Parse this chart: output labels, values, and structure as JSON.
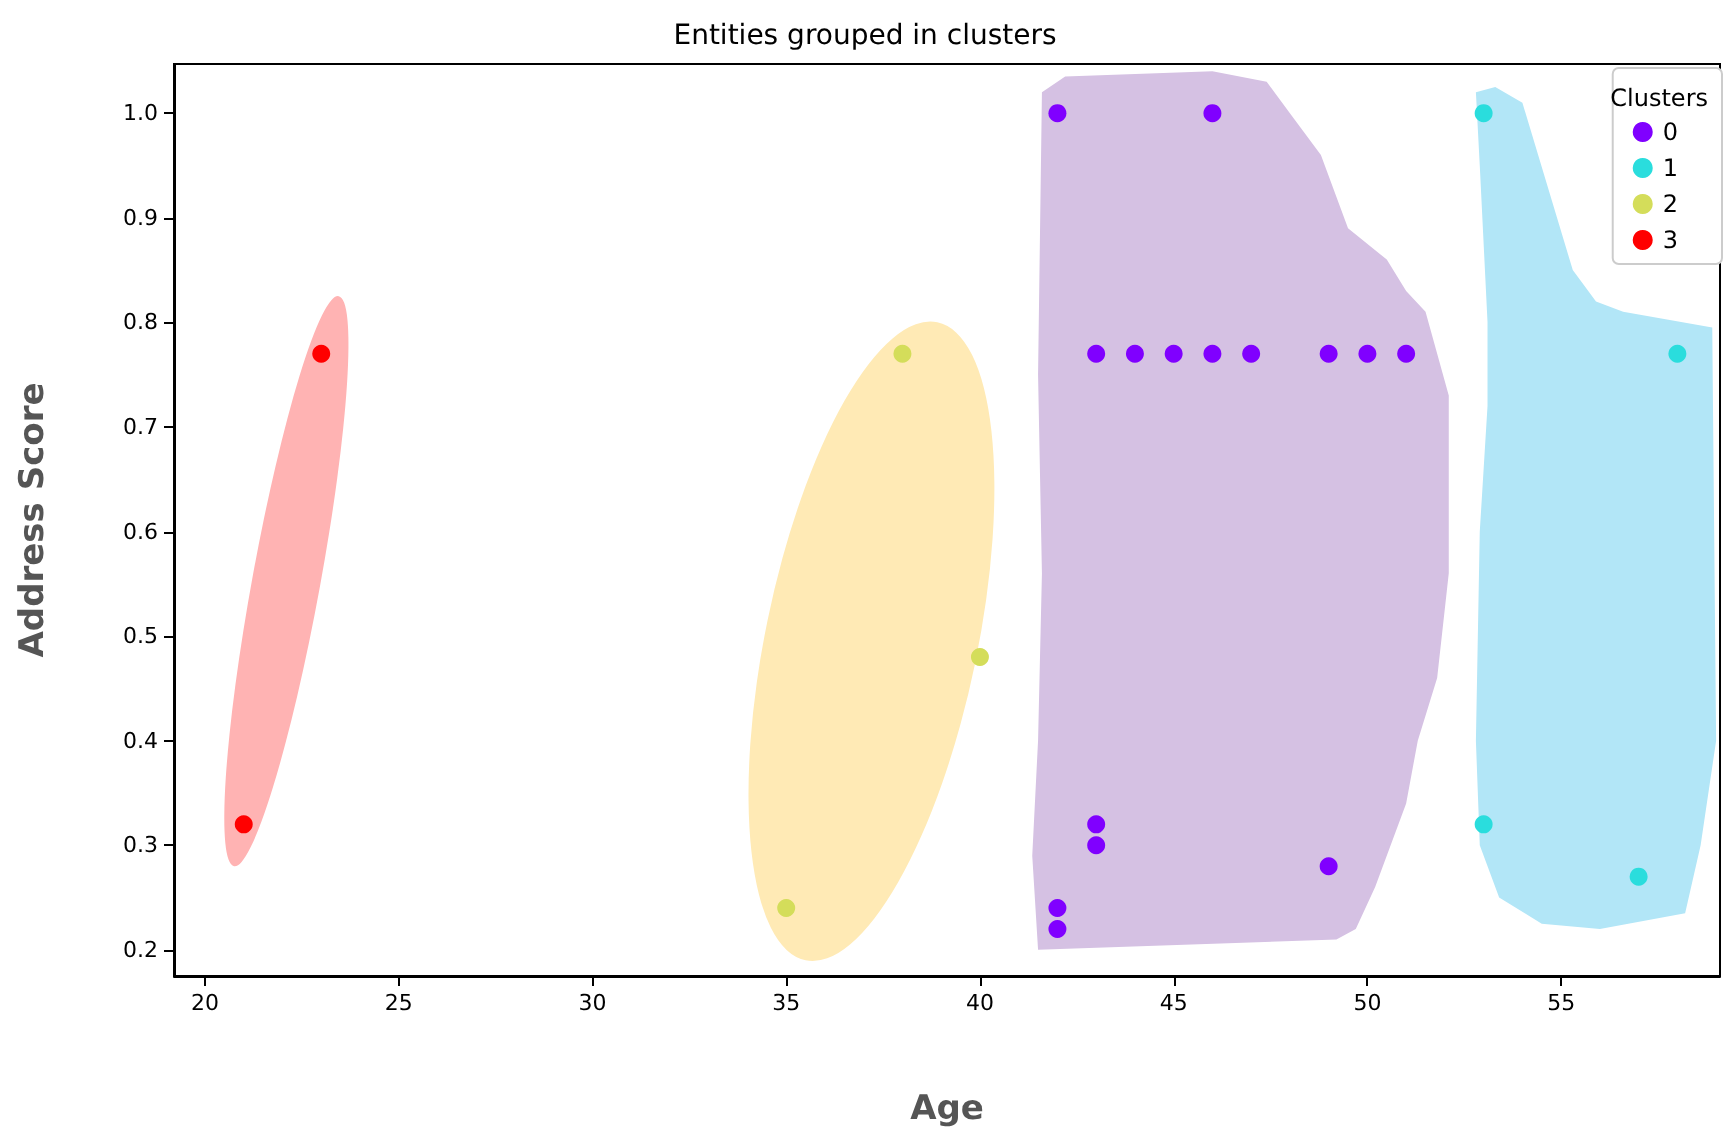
{
  "chart_data": {
    "type": "scatter",
    "title": "Entities grouped in clusters",
    "xlabel": "Age",
    "ylabel": "Address Score",
    "legend_title": "Clusters",
    "legend": "top right",
    "grid": false,
    "marker": "circle",
    "xlim": [
      19.2,
      59.1
    ],
    "xticks": [
      20,
      25,
      30,
      35,
      40,
      45,
      50,
      55
    ],
    "ylim": [
      0.175,
      1.047
    ],
    "yticks": [
      0.2,
      0.3,
      0.4,
      0.5,
      0.6,
      0.7,
      0.8,
      0.9,
      {
        "value": 1,
        "label": "1.0"
      }
    ],
    "series": [
      {
        "name": "0",
        "color": "#8000ff",
        "x": [
          42,
          46,
          43,
          44,
          45,
          46,
          47,
          49,
          50,
          51,
          43,
          43,
          42,
          42,
          49
        ],
        "values": [
          1.0,
          1.0,
          0.77,
          0.77,
          0.77,
          0.77,
          0.77,
          0.77,
          0.77,
          0.77,
          0.32,
          0.3,
          0.24,
          0.22,
          0.28
        ]
      },
      {
        "name": "1",
        "color": "#2adddd",
        "x": [
          53,
          58,
          53,
          57
        ],
        "values": [
          1.0,
          0.77,
          0.32,
          0.27
        ]
      },
      {
        "name": "2",
        "color": "#d4dd5a",
        "x": [
          35,
          38,
          40
        ],
        "values": [
          0.24,
          0.77,
          0.48
        ]
      },
      {
        "name": "3",
        "color": "#ff0000",
        "x": [
          21,
          23
        ],
        "values": [
          0.32,
          0.77
        ]
      }
    ]
  }
}
